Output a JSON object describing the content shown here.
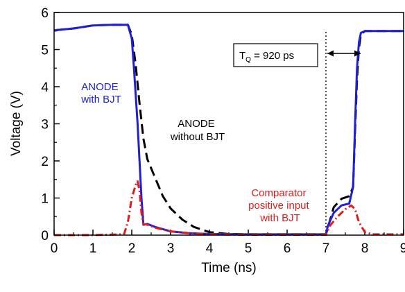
{
  "chart_data": {
    "type": "line",
    "xlabel": "Time (ns)",
    "ylabel": "Voltage (V)",
    "xlim": [
      0,
      9
    ],
    "ylim": [
      0,
      6
    ],
    "x_ticks": [
      "0",
      "1",
      "2",
      "3",
      "4",
      "5",
      "6",
      "7",
      "8",
      "9"
    ],
    "y_ticks": [
      "0",
      "1",
      "2",
      "3",
      "4",
      "5",
      "6"
    ],
    "series": [
      {
        "name": "ANODE without BJT",
        "color": "#000000",
        "style": "dashed",
        "x": [
          0,
          0.5,
          1.0,
          1.5,
          1.9,
          2.0,
          2.1,
          2.2,
          2.3,
          2.4,
          2.6,
          2.8,
          3.0,
          3.3,
          3.6,
          4.0,
          4.5,
          5.0,
          6.0,
          7.0,
          7.05,
          7.2,
          7.4,
          7.6,
          7.7,
          7.75,
          7.8,
          7.85,
          7.9,
          8.0,
          9.0
        ],
        "y": [
          5.52,
          5.57,
          5.65,
          5.67,
          5.67,
          5.4,
          4.6,
          3.55,
          2.6,
          2.05,
          1.55,
          1.05,
          0.72,
          0.42,
          0.22,
          0.08,
          0.03,
          0.02,
          0.02,
          0.02,
          0.2,
          0.75,
          0.98,
          1.05,
          1.3,
          2.8,
          4.2,
          5.05,
          5.4,
          5.5,
          5.5
        ]
      },
      {
        "name": "ANODE with BJT",
        "color": "#1f1fd6",
        "style": "solid",
        "x": [
          0,
          0.5,
          1.0,
          1.5,
          1.9,
          2.0,
          2.05,
          2.15,
          2.2,
          2.25,
          2.3,
          2.4,
          2.6,
          3.0,
          3.5,
          4.0,
          5.0,
          6.0,
          7.0,
          7.05,
          7.2,
          7.4,
          7.6,
          7.7,
          7.75,
          7.8,
          7.85,
          7.9,
          8.0,
          9.0
        ],
        "y": [
          5.52,
          5.57,
          5.65,
          5.67,
          5.67,
          5.3,
          4.6,
          3.0,
          2.0,
          1.0,
          0.28,
          0.3,
          0.22,
          0.1,
          0.05,
          0.03,
          0.02,
          0.02,
          0.02,
          0.25,
          0.6,
          0.8,
          0.85,
          1.3,
          3.0,
          4.5,
          5.2,
          5.45,
          5.5,
          5.5
        ]
      },
      {
        "name": "Comparator positive input with BJT",
        "color": "#e21b1b",
        "style": "dashdot",
        "x": [
          0,
          1.0,
          1.8,
          1.9,
          2.0,
          2.1,
          2.15,
          2.2,
          2.25,
          2.3,
          2.4,
          2.6,
          3.0,
          3.5,
          4.0,
          5.0,
          6.0,
          7.0,
          7.1,
          7.3,
          7.5,
          7.65,
          7.75,
          7.85,
          8.0,
          8.2,
          9.0
        ],
        "y": [
          0,
          0,
          0.02,
          0.35,
          1.0,
          1.35,
          1.45,
          1.2,
          0.6,
          0.3,
          0.28,
          0.2,
          0.1,
          0.05,
          0.02,
          0.01,
          0.01,
          0.01,
          0.25,
          0.5,
          0.7,
          0.8,
          0.7,
          0.35,
          0.08,
          0.02,
          0.02
        ]
      }
    ],
    "vline": {
      "x": 7.0,
      "style": "dotted",
      "color": "#555555"
    },
    "annotations": {
      "anode_bjt": [
        "ANODE",
        "with BJT"
      ],
      "anode_no_bjt": [
        "ANODE",
        "without BJT"
      ],
      "comparator": [
        "Comparator",
        "positive input",
        "with BJT"
      ],
      "tq_main": "T",
      "tq_sub": "Q",
      "tq_rest": " = 920 ps"
    },
    "grid": false,
    "legend": "none"
  }
}
